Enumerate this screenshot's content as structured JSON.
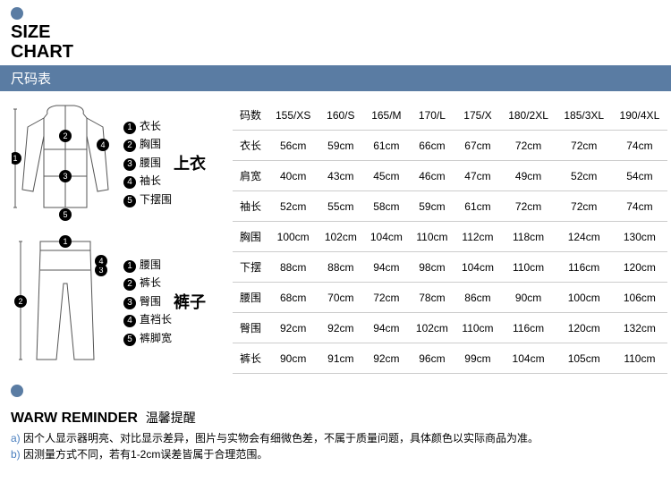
{
  "header": {
    "title_en_1": "SIZE",
    "title_en_2": "CHART",
    "title_cn": "尺码表"
  },
  "sections": {
    "top": "上衣",
    "bottom": "裤子"
  },
  "legend_top": [
    {
      "n": "1",
      "label": "衣长"
    },
    {
      "n": "2",
      "label": "胸围"
    },
    {
      "n": "3",
      "label": "腰围"
    },
    {
      "n": "4",
      "label": "袖长"
    },
    {
      "n": "5",
      "label": "下摆围"
    }
  ],
  "legend_bottom": [
    {
      "n": "1",
      "label": "腰围"
    },
    {
      "n": "2",
      "label": "裤长"
    },
    {
      "n": "3",
      "label": "臀围"
    },
    {
      "n": "4",
      "label": "直裆长"
    },
    {
      "n": "5",
      "label": "裤脚宽"
    }
  ],
  "table": {
    "header_label": "码数",
    "sizes": [
      "155/XS",
      "160/S",
      "165/M",
      "170/L",
      "175/X",
      "180/2XL",
      "185/3XL",
      "190/4XL"
    ],
    "rows": [
      {
        "label": "衣长",
        "vals": [
          "56cm",
          "59cm",
          "61cm",
          "66cm",
          "67cm",
          "72cm",
          "72cm",
          "74cm"
        ]
      },
      {
        "label": "肩宽",
        "vals": [
          "40cm",
          "43cm",
          "45cm",
          "46cm",
          "47cm",
          "49cm",
          "52cm",
          "54cm"
        ]
      },
      {
        "label": "袖长",
        "vals": [
          "52cm",
          "55cm",
          "58cm",
          "59cm",
          "61cm",
          "72cm",
          "72cm",
          "74cm"
        ]
      },
      {
        "label": "胸围",
        "vals": [
          "100cm",
          "102cm",
          "104cm",
          "110cm",
          "112cm",
          "118cm",
          "124cm",
          "130cm"
        ]
      },
      {
        "label": "下摆",
        "vals": [
          "88cm",
          "88cm",
          "94cm",
          "98cm",
          "104cm",
          "110cm",
          "116cm",
          "120cm"
        ]
      },
      {
        "label": "腰围",
        "vals": [
          "68cm",
          "70cm",
          "72cm",
          "78cm",
          "86cm",
          "90cm",
          "100cm",
          "106cm"
        ]
      },
      {
        "label": "臀围",
        "vals": [
          "92cm",
          "92cm",
          "94cm",
          "102cm",
          "110cm",
          "116cm",
          "120cm",
          "132cm"
        ]
      },
      {
        "label": "裤长",
        "vals": [
          "90cm",
          "91cm",
          "92cm",
          "96cm",
          "99cm",
          "104cm",
          "105cm",
          "110cm"
        ]
      }
    ]
  },
  "reminder": {
    "title_en": "WARW REMINDER",
    "title_cn": "温馨提醒",
    "lines": [
      {
        "p": "a)",
        "t": "因个人显示器明亮、对比显示差异，图片与实物会有细微色差，不属于质量问题，具体颜色以实际商品为准。"
      },
      {
        "p": "b)",
        "t": "因测量方式不同，若有1-2cm误差皆属于合理范围。"
      }
    ]
  },
  "colors": {
    "bar": "#5a7ca3",
    "link": "#4a7fbf",
    "border": "#cccccc"
  }
}
